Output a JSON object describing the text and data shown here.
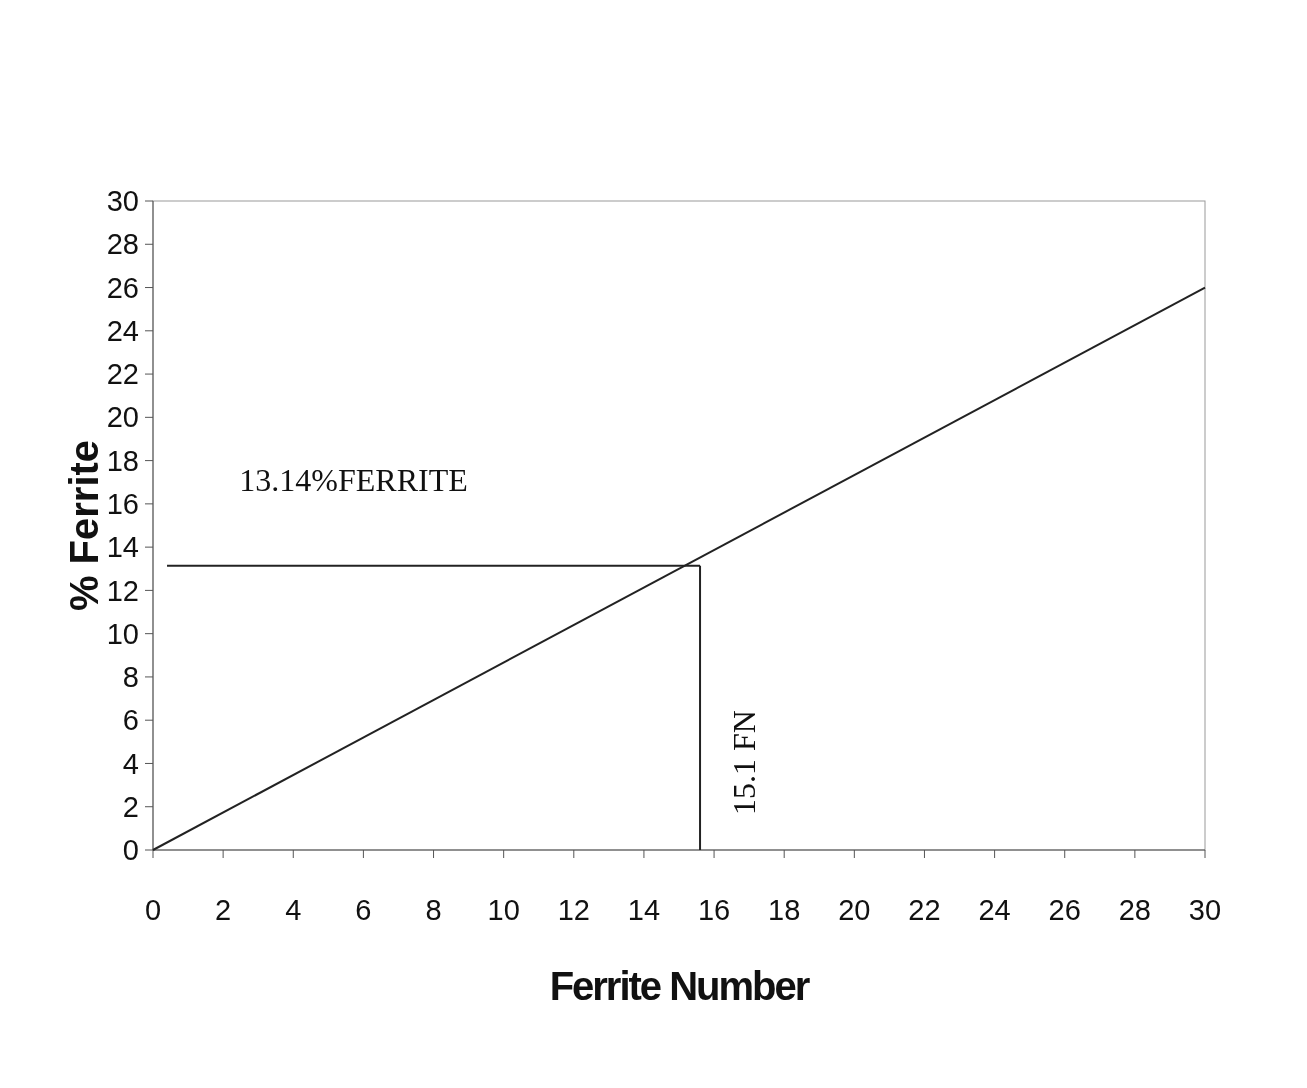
{
  "chart_data": {
    "type": "line",
    "xlabel": "Ferrite Number",
    "ylabel": "% Ferrite",
    "xlim": [
      0,
      30
    ],
    "ylim": [
      0,
      30
    ],
    "xticks": [
      0,
      2,
      4,
      6,
      8,
      10,
      12,
      14,
      16,
      18,
      20,
      22,
      24,
      26,
      28,
      30
    ],
    "yticks": [
      0,
      2,
      4,
      6,
      8,
      10,
      12,
      14,
      16,
      18,
      20,
      22,
      24,
      26,
      28,
      30
    ],
    "grid": false,
    "marker": "none",
    "line_style": "solid",
    "series": [
      {
        "color": "#222222",
        "x": [
          0,
          30
        ],
        "values": [
          0,
          26
        ]
      },
      {
        "color": "#222222",
        "x": [
          0.4,
          15.6
        ],
        "values": [
          13.14,
          13.14
        ]
      },
      {
        "color": "#222222",
        "x": [
          15.6,
          15.6
        ],
        "values": [
          13.14,
          0
        ]
      }
    ],
    "annotations": [
      "13.14%FERRITE",
      "15.1 FN"
    ]
  }
}
